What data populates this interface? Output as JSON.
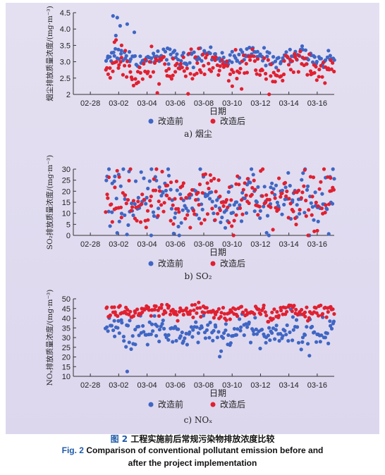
{
  "colors": {
    "before": "#3f66c4",
    "after": "#e02030",
    "axis": "#333333",
    "caption_blue": "#1e5aa8"
  },
  "legend": {
    "before": "改造前",
    "after": "改造后"
  },
  "caption": {
    "cn_prefix": "图 2",
    "cn": "工程实施前后常规污染物排放浓度比较",
    "en_prefix": "Fig. 2",
    "en_line1": "Comparison of conventional pollutant emission before and",
    "en_line2": "after the project implementation"
  },
  "chart_data": [
    {
      "type": "scatter",
      "panel_label": "a) 烟尘",
      "xlabel": "日期",
      "ylabel": "烟尘排放质量浓度/(mg·m⁻³)",
      "xticks": [
        "02-28",
        "03-02",
        "03-04",
        "03-06",
        "03-08",
        "03-10",
        "03-12",
        "03-14",
        "03-16"
      ],
      "xlim": [
        -0.6,
        8.6
      ],
      "ylim": [
        2.0,
        4.5
      ],
      "yticks": [
        2,
        2.5,
        3.0,
        3.5,
        4.0,
        4.5
      ],
      "ytick_labels": [
        "2",
        "2.5",
        "3.0",
        "3.5",
        "4.0",
        "4.5"
      ],
      "series": [
        {
          "name": "改造前",
          "role": "before",
          "x_start": 0.55,
          "x_end": 8.6,
          "count": 190,
          "mean": 3.15,
          "amp": 0.1,
          "noise": 0.12,
          "extra_x": [
            0.8,
            0.95,
            1.05,
            1.3,
            1.55,
            0.9
          ],
          "extra_y": [
            4.4,
            4.35,
            4.1,
            4.15,
            3.9,
            3.8
          ]
        },
        {
          "name": "改造后",
          "role": "after",
          "x_start": 0.55,
          "x_end": 8.6,
          "count": 190,
          "mean": 2.8,
          "amp": 0.15,
          "noise": 0.25,
          "extra_x": [
            0.85,
            1.1
          ],
          "extra_y": [
            3.6,
            3.5
          ]
        }
      ]
    },
    {
      "type": "scatter",
      "panel_label": "b) SO₂",
      "xlabel": "日期",
      "ylabel": "SO₂排放质量浓度/(mg·m⁻³)",
      "xticks": [
        "02-28",
        "03-02",
        "03-04",
        "03-06",
        "03-08",
        "03-10",
        "03-12",
        "03-14",
        "03-16"
      ],
      "xlim": [
        -0.6,
        8.6
      ],
      "ylim": [
        0,
        30
      ],
      "yticks": [
        0,
        5,
        10,
        15,
        20,
        25,
        30
      ],
      "ytick_labels": [
        "0",
        "5",
        "10",
        "15",
        "20",
        "25",
        "30"
      ],
      "series": [
        {
          "name": "改造前",
          "role": "before",
          "x_start": 0.55,
          "x_end": 8.6,
          "count": 200,
          "mean": 15,
          "amp": 3,
          "noise": 7
        },
        {
          "name": "改造后",
          "role": "after",
          "x_start": 0.55,
          "x_end": 8.6,
          "count": 200,
          "mean": 16,
          "amp": 3,
          "noise": 6.5
        }
      ]
    },
    {
      "type": "scatter",
      "panel_label": "c) NOₓ",
      "xlabel": "日期",
      "ylabel": "NOₓ排放质量浓度/(mg·m⁻³)",
      "xticks": [
        "02-28",
        "03-02",
        "03-04",
        "03-06",
        "03-08",
        "03-10",
        "03-12",
        "03-14",
        "03-16"
      ],
      "xlim": [
        -0.6,
        8.6
      ],
      "ylim": [
        10,
        50
      ],
      "yticks": [
        10,
        15,
        20,
        25,
        30,
        35,
        40,
        45,
        50
      ],
      "ytick_labels": [
        "10",
        "15",
        "20",
        "25",
        "30",
        "35",
        "40",
        "45",
        "50"
      ],
      "series": [
        {
          "name": "改造前",
          "role": "before",
          "x_start": 0.55,
          "x_end": 8.6,
          "count": 200,
          "mean": 33,
          "amp": 2,
          "noise": 4,
          "extra_x": [
            1.3
          ],
          "extra_y": [
            12.5
          ]
        },
        {
          "name": "改造后",
          "role": "after",
          "x_start": 0.55,
          "x_end": 8.6,
          "count": 200,
          "mean": 43,
          "amp": 0.8,
          "noise": 2
        }
      ]
    }
  ]
}
